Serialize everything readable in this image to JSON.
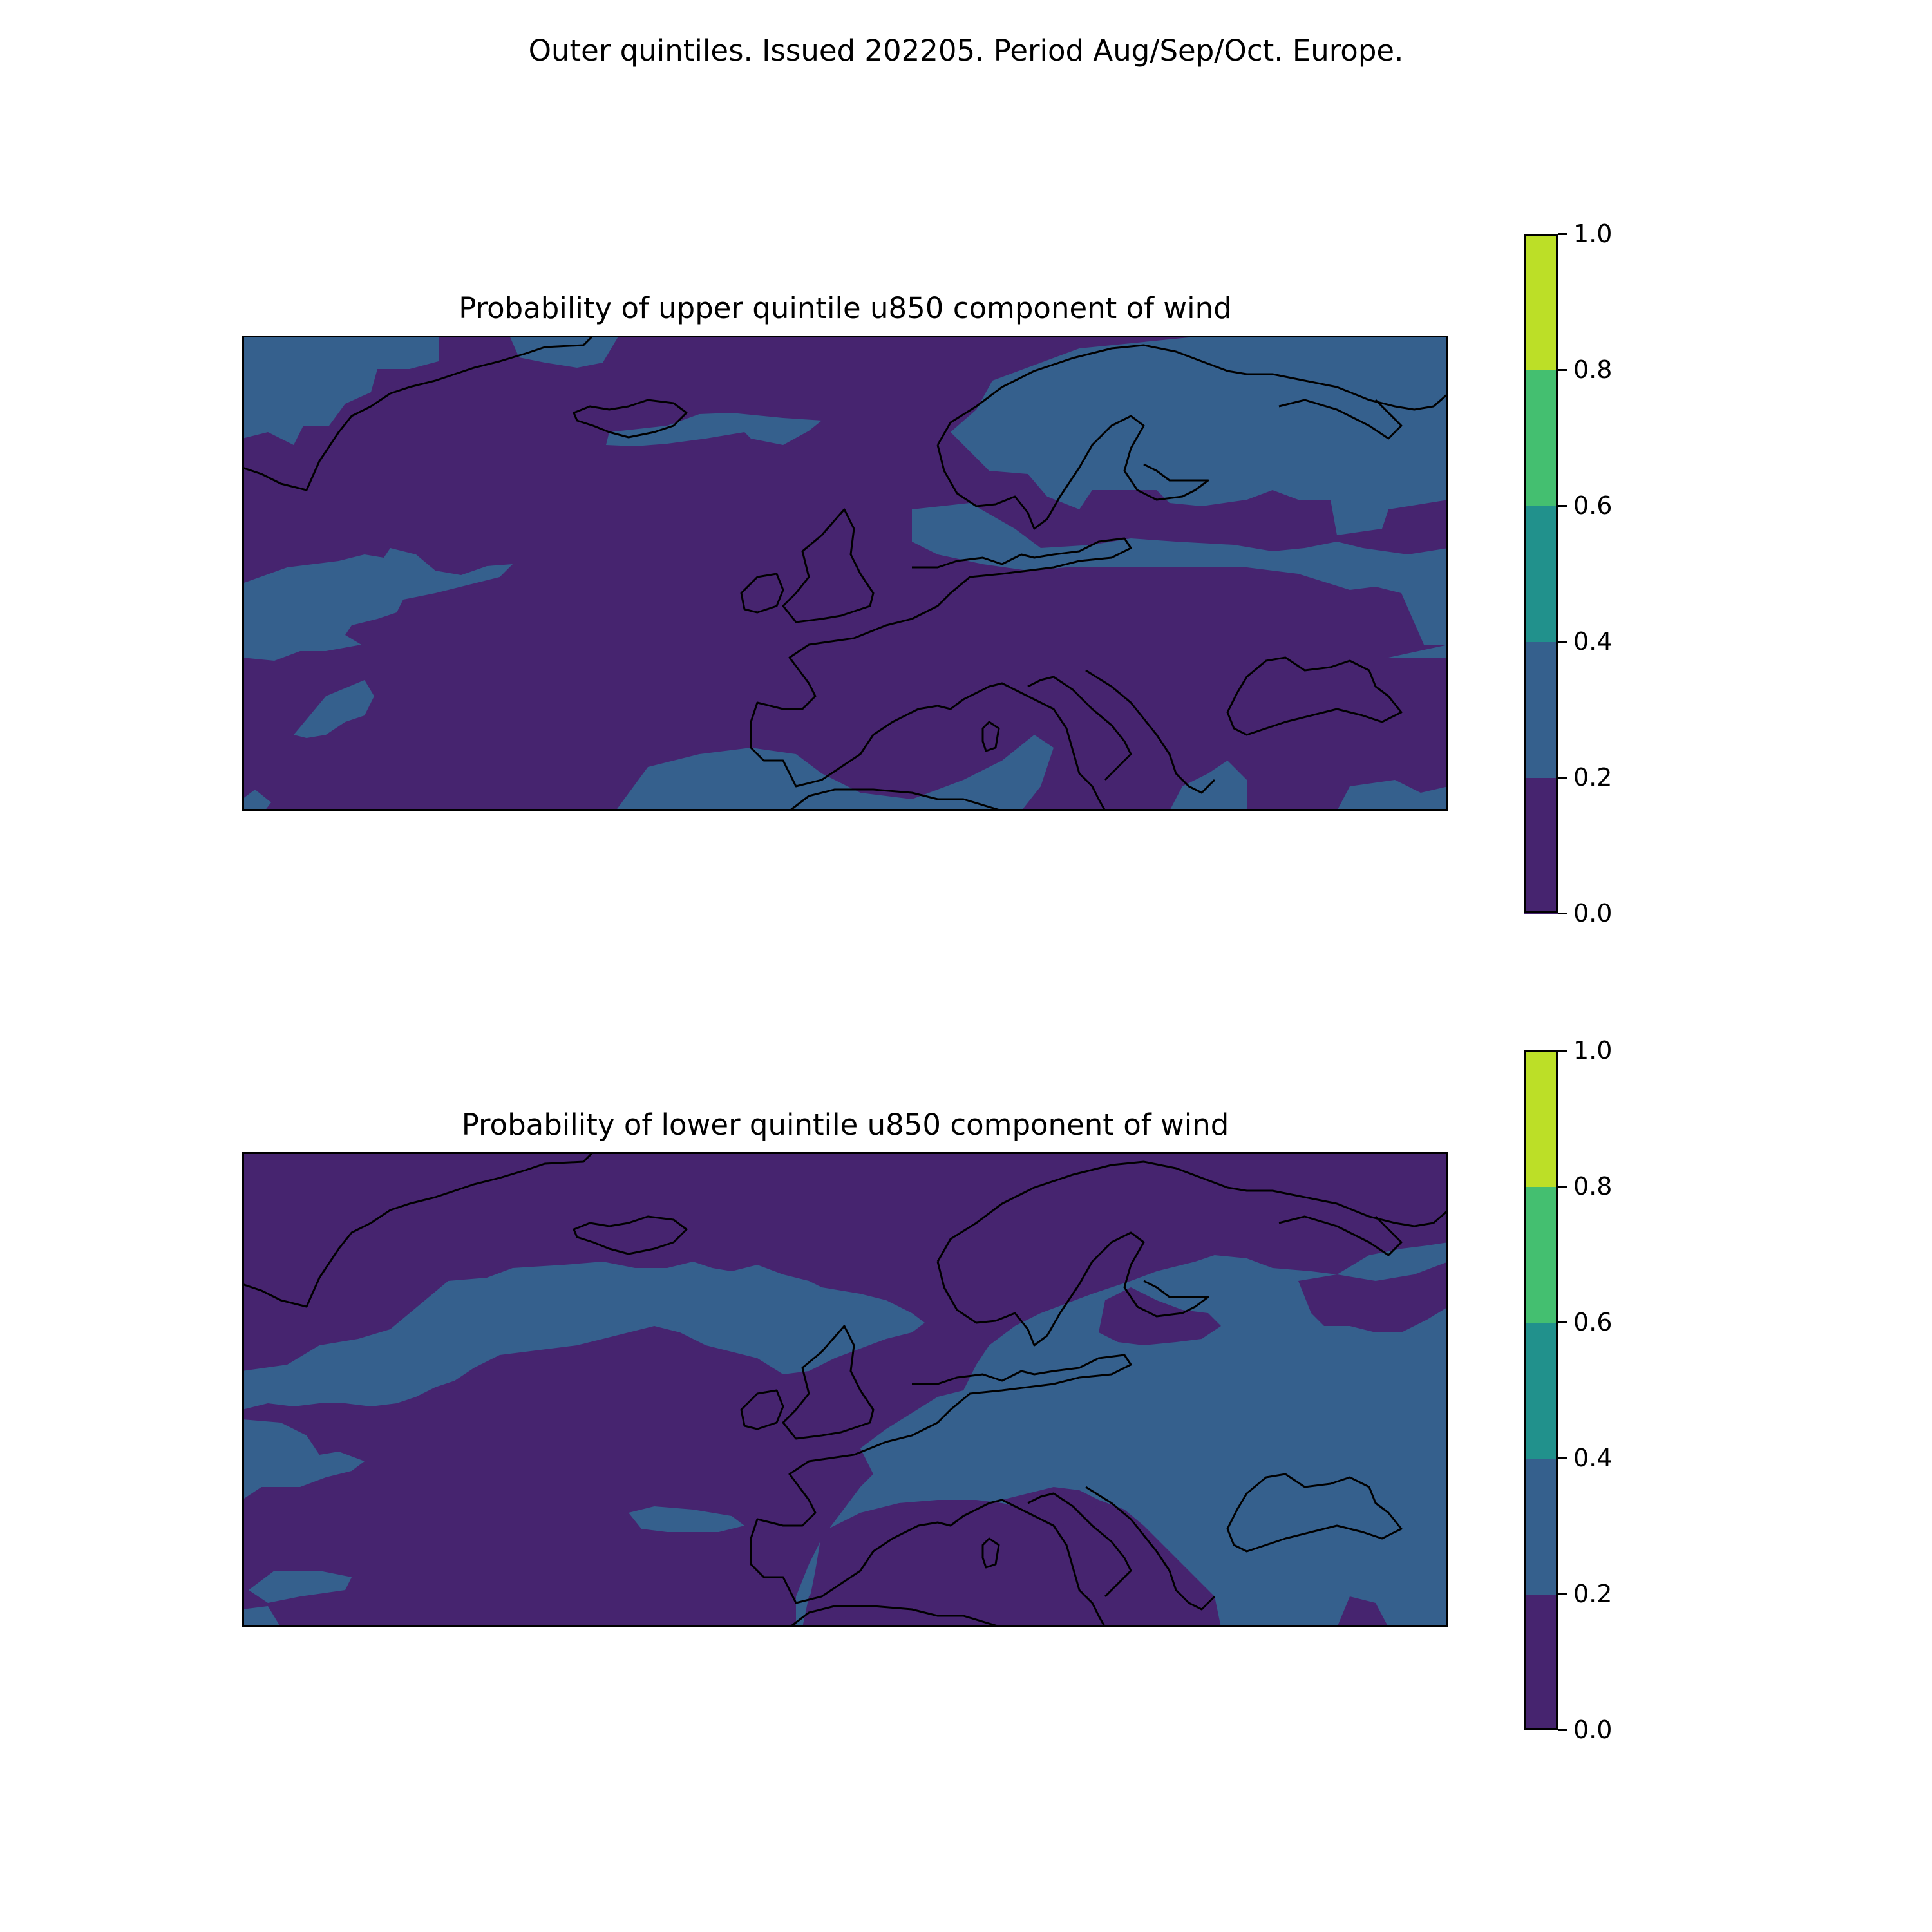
{
  "suptitle": "Outer quintiles. Issued 202205. Period Aug/Sep/Oct. Europe.",
  "colors": {
    "level_0_0.2": "#46246f",
    "level_0.2_0.4": "#35608d",
    "level_0.4_0.6": "#21918c",
    "level_0.6_0.8": "#44bf70",
    "level_0.8_1.0": "#bcdf27",
    "coastline": "#000000"
  },
  "panels": [
    {
      "id": "upper",
      "title": "Probability of upper quintile u850 component of wind",
      "dominant_class": "0.0–0.2",
      "secondary_class": "0.2–0.4",
      "colorbar": {
        "ticks": [
          "0.0",
          "0.2",
          "0.4",
          "0.6",
          "0.8",
          "1.0"
        ],
        "levels": [
          0.0,
          0.2,
          0.4,
          0.6,
          0.8,
          1.0
        ]
      }
    },
    {
      "id": "lower",
      "title": "Probability of lower quintile u850 component of wind",
      "dominant_class": "0.0–0.2 (west), 0.2–0.4 (east)",
      "secondary_class": "0.2–0.4",
      "colorbar": {
        "ticks": [
          "0.0",
          "0.2",
          "0.4",
          "0.6",
          "0.8",
          "1.0"
        ],
        "levels": [
          0.0,
          0.2,
          0.4,
          0.6,
          0.8,
          1.0
        ]
      }
    }
  ]
}
